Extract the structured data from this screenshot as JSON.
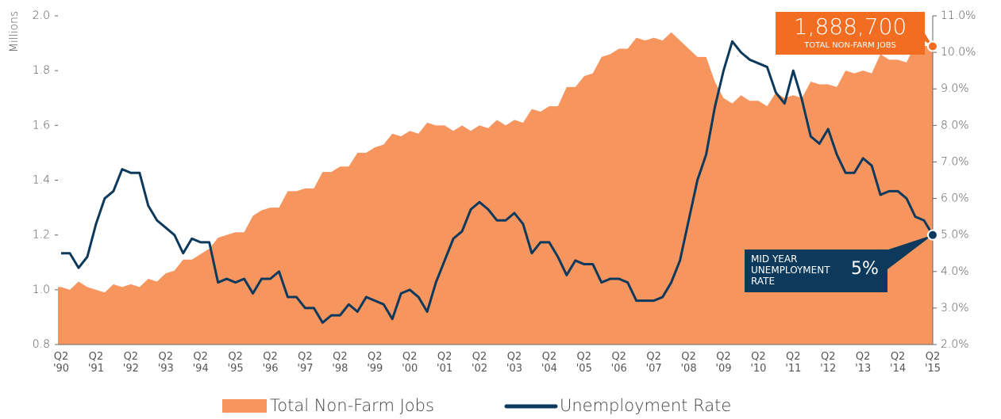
{
  "chart_data": {
    "type": "area-line",
    "y_label": "Millions",
    "categories": [
      "Q2 '90",
      null,
      null,
      null,
      "Q2 '91",
      null,
      null,
      null,
      "Q2 '92",
      null,
      null,
      null,
      "Q2 '93",
      null,
      null,
      null,
      "Q2 '94",
      null,
      null,
      null,
      "Q2 '95",
      null,
      null,
      null,
      "Q2 '96",
      null,
      null,
      null,
      "Q2 '97",
      null,
      null,
      null,
      "Q2 '98",
      null,
      null,
      null,
      "Q2 '99",
      null,
      null,
      null,
      "Q2 '00",
      null,
      null,
      null,
      "Q2 '01",
      null,
      null,
      null,
      "Q2 '02",
      null,
      null,
      null,
      "Q2 '03",
      null,
      null,
      null,
      "Q2 '04",
      null,
      null,
      null,
      "Q2 '05",
      null,
      null,
      null,
      "Q2 '06",
      null,
      null,
      null,
      "Q2 '07",
      null,
      null,
      null,
      "Q2 '08",
      null,
      null,
      null,
      "Q2 '09",
      null,
      null,
      null,
      "Q2 '10",
      null,
      null,
      null,
      "Q2 '11",
      null,
      null,
      null,
      "Q2 '12",
      null,
      null,
      null,
      "Q2 '13",
      null,
      null,
      null,
      "Q2 '14",
      null,
      null,
      null,
      "Q2 '15"
    ],
    "series": [
      {
        "name": "Total Non-Farm Jobs",
        "color": "#f7955f",
        "axis": "y",
        "values": [
          1.01,
          1.0,
          1.03,
          1.01,
          1.0,
          0.99,
          1.02,
          1.01,
          1.02,
          1.01,
          1.04,
          1.03,
          1.06,
          1.07,
          1.11,
          1.11,
          1.13,
          1.15,
          1.19,
          1.2,
          1.21,
          1.21,
          1.27,
          1.29,
          1.3,
          1.3,
          1.36,
          1.36,
          1.37,
          1.37,
          1.43,
          1.43,
          1.45,
          1.45,
          1.5,
          1.5,
          1.52,
          1.53,
          1.57,
          1.56,
          1.58,
          1.57,
          1.61,
          1.6,
          1.6,
          1.58,
          1.6,
          1.58,
          1.6,
          1.59,
          1.62,
          1.6,
          1.62,
          1.61,
          1.66,
          1.65,
          1.67,
          1.67,
          1.74,
          1.74,
          1.78,
          1.79,
          1.85,
          1.86,
          1.88,
          1.88,
          1.92,
          1.91,
          1.92,
          1.91,
          1.94,
          1.91,
          1.88,
          1.85,
          1.85,
          1.76,
          1.7,
          1.68,
          1.71,
          1.69,
          1.69,
          1.67,
          1.72,
          1.7,
          1.71,
          1.7,
          1.76,
          1.75,
          1.75,
          1.74,
          1.8,
          1.79,
          1.8,
          1.79,
          1.86,
          1.84,
          1.84,
          1.83,
          1.9,
          1.89,
          1.8887
        ]
      },
      {
        "name": "Unemployment Rate",
        "color": "#0d3a5c",
        "axis": "y2",
        "values": [
          4.5,
          4.5,
          4.1,
          4.4,
          5.3,
          6.0,
          6.2,
          6.8,
          6.7,
          6.7,
          5.8,
          5.4,
          5.2,
          5.0,
          4.5,
          4.9,
          4.8,
          4.8,
          3.7,
          3.8,
          3.7,
          3.8,
          3.4,
          3.8,
          3.8,
          4.0,
          3.3,
          3.3,
          3.0,
          3.0,
          2.6,
          2.8,
          2.8,
          3.1,
          2.9,
          3.3,
          3.2,
          3.1,
          2.7,
          3.4,
          3.5,
          3.3,
          2.9,
          3.7,
          4.3,
          4.9,
          5.1,
          5.7,
          5.9,
          5.7,
          5.4,
          5.4,
          5.6,
          5.3,
          4.5,
          4.8,
          4.8,
          4.4,
          3.9,
          4.3,
          4.2,
          4.2,
          3.7,
          3.8,
          3.8,
          3.7,
          3.2,
          3.2,
          3.2,
          3.3,
          3.7,
          4.3,
          5.4,
          6.5,
          7.2,
          8.5,
          9.5,
          10.3,
          10.0,
          9.8,
          9.7,
          9.6,
          8.9,
          8.6,
          9.5,
          8.7,
          7.7,
          7.5,
          7.9,
          7.2,
          6.7,
          6.7,
          7.1,
          6.9,
          6.1,
          6.2,
          6.2,
          6.0,
          5.5,
          5.4,
          5.0
        ]
      }
    ],
    "ylim": [
      0.8,
      2.0
    ],
    "yticks": [
      {
        "value": 0.8,
        "label": "0.8"
      },
      {
        "value": 1.0,
        "label": "1.0"
      },
      {
        "value": 1.2,
        "label": "1.2"
      },
      {
        "value": 1.4,
        "label": "1.4"
      },
      {
        "value": 1.6,
        "label": "1.6"
      },
      {
        "value": 1.8,
        "label": "1.8"
      },
      {
        "value": 2.0,
        "label": "2.0"
      }
    ],
    "y2lim": [
      2,
      11
    ],
    "y2ticks": [
      {
        "value": 2,
        "label": "2.0%"
      },
      {
        "value": 3,
        "label": "3.0%"
      },
      {
        "value": 4,
        "label": "4.0%"
      },
      {
        "value": 5,
        "label": "5.0%"
      },
      {
        "value": 6,
        "label": "6.0%"
      },
      {
        "value": 7,
        "label": "7.0%"
      },
      {
        "value": 8,
        "label": "8.0%"
      },
      {
        "value": 9,
        "label": "9.0%"
      },
      {
        "value": 10,
        "label": "10.0%"
      },
      {
        "value": 11,
        "label": "11.0%"
      }
    ],
    "annotations": [
      {
        "text": "1,888,700",
        "subtext": "TOTAL NON-FARM JOBS",
        "color": "#f26c22"
      },
      {
        "text": "5%",
        "subtext": "MID YEAR UNEMPLOYMENT RATE",
        "color": "#0d3a5c"
      }
    ],
    "legend": "bottom"
  }
}
